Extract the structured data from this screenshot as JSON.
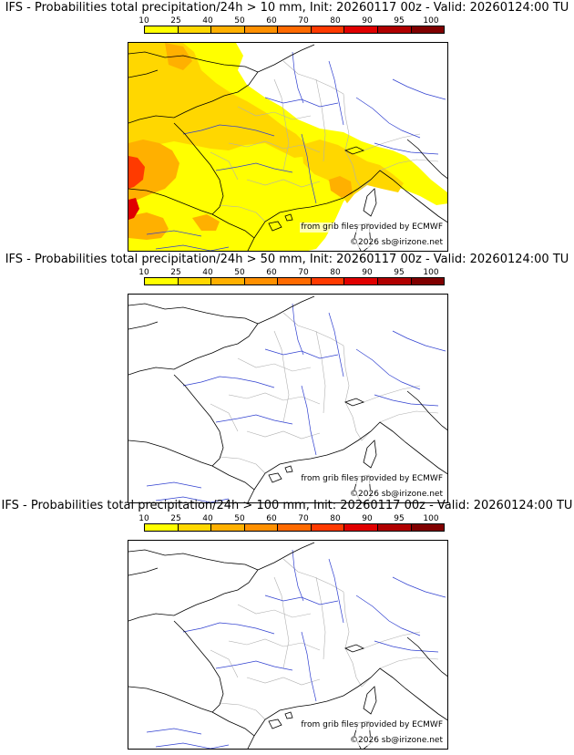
{
  "scale": {
    "ticks": [
      "10",
      "25",
      "40",
      "50",
      "60",
      "70",
      "80",
      "90",
      "95",
      "100"
    ],
    "colors": [
      "#ffff00",
      "#ffd700",
      "#ffb000",
      "#ff9000",
      "#ff6a00",
      "#ff3a00",
      "#e00000",
      "#b00000",
      "#800000",
      "#500000"
    ]
  },
  "colors": {
    "coast": "#000000",
    "rivers": "#3040d0",
    "borders": "#b0b0b0"
  },
  "panels": [
    {
      "title": "IFS - Probabilities total precipitation/24h > 10 mm, Init: 20260117 00z - Valid: 20260124:00 TU",
      "credit_source": "from grib files provided by ECMWF",
      "credit_copyright": "©2026 sb@irizone.net",
      "has_precip": true
    },
    {
      "title": "IFS - Probabilities total precipitation/24h > 50 mm, Init: 20260117 00z - Valid: 20260124:00 TU",
      "credit_source": "from grib files provided by ECMWF",
      "credit_copyright": "©2026 sb@irizone.net",
      "has_precip": false
    },
    {
      "title": "IFS - Probabilities total precipitation/24h > 100 mm, Init: 20260117 00z - Valid: 20260124:00 TU",
      "credit_source": "from grib files provided by ECMWF",
      "credit_copyright": "©2026 sb@irizone.net",
      "has_precip": false
    }
  ]
}
